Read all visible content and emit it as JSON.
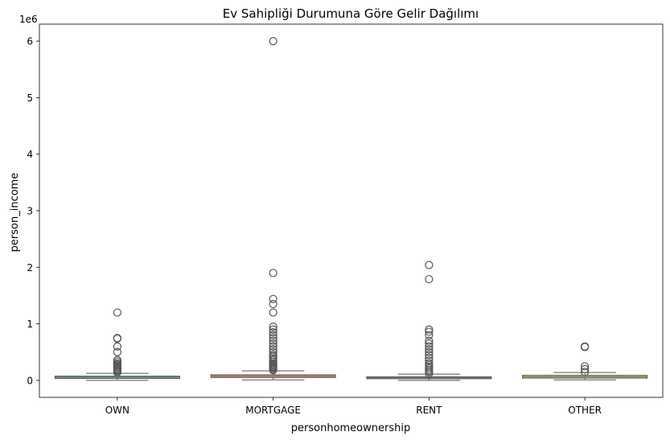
{
  "chart_data": {
    "type": "box",
    "title": "Ev Sahipliği Durumuna Göre Gelir Dağılımı",
    "xlabel": "personhomeownership",
    "ylabel": "person_income",
    "y_offset_label": "1e6",
    "ylim": [
      -0.3,
      6.3
    ],
    "y_ticks": [
      0,
      1,
      2,
      3,
      4,
      5,
      6
    ],
    "y_tick_labels": [
      "0",
      "1",
      "2",
      "3",
      "4",
      "5",
      "6"
    ],
    "grid": false,
    "legend": "none",
    "categories": [
      "OWN",
      "MORTGAGE",
      "RENT",
      "OTHER"
    ],
    "colors": [
      "#8fd3b4",
      "#fcab8e",
      "#a4b6e0",
      "#c8e07e"
    ],
    "boxes": [
      {
        "category": "OWN",
        "whisker_low": 0.0,
        "q1": 0.035,
        "median": 0.055,
        "q3": 0.075,
        "whisker_high": 0.125,
        "outliers": [
          1.2,
          0.75,
          0.74,
          0.6,
          0.5,
          0.36,
          0.33,
          0.3,
          0.28,
          0.26,
          0.24,
          0.22,
          0.2,
          0.18,
          0.16,
          0.14
        ]
      },
      {
        "category": "MORTGAGE",
        "whisker_low": 0.01,
        "q1": 0.05,
        "median": 0.075,
        "q3": 0.1,
        "whisker_high": 0.17,
        "outliers": [
          6.0,
          1.9,
          1.44,
          1.35,
          1.2,
          0.95,
          0.9,
          0.85,
          0.8,
          0.75,
          0.7,
          0.65,
          0.6,
          0.55,
          0.5,
          0.45,
          0.42,
          0.39,
          0.36,
          0.33,
          0.3,
          0.28,
          0.26,
          0.24,
          0.22,
          0.2,
          0.18
        ]
      },
      {
        "category": "RENT",
        "whisker_low": 0.0,
        "q1": 0.03,
        "median": 0.045,
        "q3": 0.065,
        "whisker_high": 0.11,
        "outliers": [
          2.04,
          1.79,
          0.9,
          0.86,
          0.8,
          0.7,
          0.65,
          0.6,
          0.55,
          0.5,
          0.45,
          0.4,
          0.35,
          0.3,
          0.27,
          0.24,
          0.21,
          0.18,
          0.15,
          0.12
        ]
      },
      {
        "category": "OTHER",
        "whisker_low": 0.01,
        "q1": 0.04,
        "median": 0.065,
        "q3": 0.09,
        "whisker_high": 0.14,
        "outliers": [
          0.6,
          0.59,
          0.25,
          0.2,
          0.15
        ]
      }
    ]
  }
}
